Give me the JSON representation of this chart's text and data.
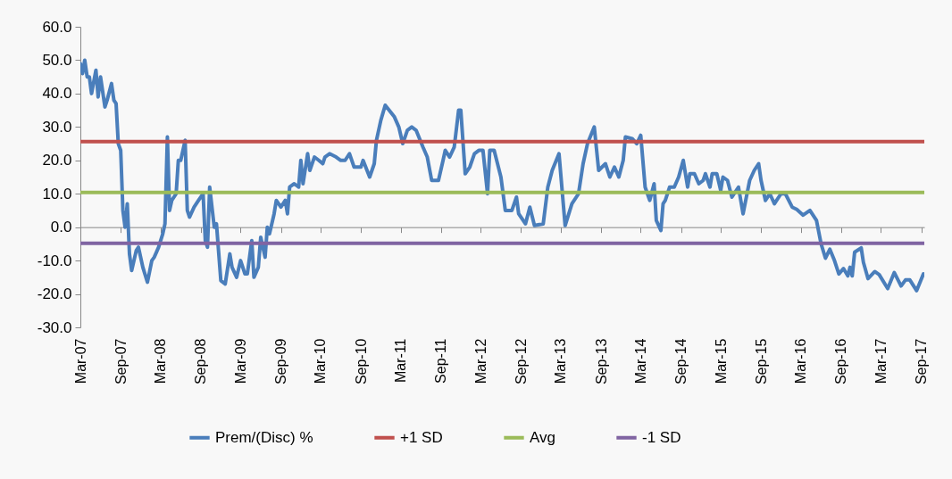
{
  "chart_data": {
    "type": "line",
    "x": [
      "2007-03-01",
      "2007-03-11",
      "2007-03-21",
      "2007-04-01",
      "2007-04-11",
      "2007-04-21",
      "2007-05-11",
      "2007-05-21",
      "2007-06-01",
      "2007-06-21",
      "2007-07-01",
      "2007-07-21",
      "2007-08-01",
      "2007-08-11",
      "2007-08-21",
      "2007-09-01",
      "2007-09-11",
      "2007-09-21",
      "2007-10-01",
      "2007-10-11",
      "2007-10-21",
      "2007-11-11",
      "2007-11-21",
      "2007-12-11",
      "2008-01-01",
      "2008-01-21",
      "2008-02-01",
      "2008-02-21",
      "2008-03-11",
      "2008-03-21",
      "2008-04-01",
      "2008-04-11",
      "2008-04-21",
      "2008-05-11",
      "2008-05-21",
      "2008-06-01",
      "2008-06-21",
      "2008-07-01",
      "2008-07-11",
      "2008-08-01",
      "2008-08-21",
      "2008-09-11",
      "2008-09-21",
      "2008-10-01",
      "2008-10-11",
      "2008-11-01",
      "2008-11-11",
      "2008-12-01",
      "2008-12-21",
      "2009-01-11",
      "2009-01-21",
      "2009-02-11",
      "2009-03-01",
      "2009-03-21",
      "2009-04-01",
      "2009-04-21",
      "2009-05-01",
      "2009-05-21",
      "2009-06-01",
      "2009-06-21",
      "2009-07-01",
      "2009-07-11",
      "2009-08-01",
      "2009-08-11",
      "2009-09-01",
      "2009-09-21",
      "2009-10-01",
      "2009-10-11",
      "2009-11-01",
      "2009-11-21",
      "2009-12-01",
      "2009-12-11",
      "2010-01-01",
      "2010-01-11",
      "2010-02-01",
      "2010-02-21",
      "2010-03-11",
      "2010-03-21",
      "2010-04-11",
      "2010-05-11",
      "2010-06-01",
      "2010-06-21",
      "2010-07-11",
      "2010-08-01",
      "2010-09-01",
      "2010-09-11",
      "2010-10-11",
      "2010-11-01",
      "2010-11-11",
      "2010-12-01",
      "2010-12-21",
      "2011-02-01",
      "2011-02-21",
      "2011-03-11",
      "2011-04-01",
      "2011-04-21",
      "2011-05-11",
      "2011-06-11",
      "2011-07-01",
      "2011-07-21",
      "2011-08-21",
      "2011-09-11",
      "2011-09-21",
      "2011-10-11",
      "2011-11-01",
      "2011-11-21",
      "2011-12-01",
      "2011-12-21",
      "2012-01-11",
      "2012-02-01",
      "2012-02-21",
      "2012-03-11",
      "2012-04-01",
      "2012-04-11",
      "2012-05-01",
      "2012-06-01",
      "2012-06-21",
      "2012-07-21",
      "2012-08-11",
      "2012-08-21",
      "2012-09-21",
      "2012-10-11",
      "2012-11-01",
      "2012-12-11",
      "2013-01-01",
      "2013-01-21",
      "2013-02-21",
      "2013-03-21",
      "2013-04-21",
      "2013-05-21",
      "2013-06-11",
      "2013-07-01",
      "2013-08-01",
      "2013-08-21",
      "2013-09-21",
      "2013-10-11",
      "2013-11-01",
      "2013-11-21",
      "2013-12-11",
      "2013-12-21",
      "2014-01-21",
      "2014-02-11",
      "2014-03-01",
      "2014-03-21",
      "2014-04-11",
      "2014-05-01",
      "2014-05-11",
      "2014-06-01",
      "2014-06-11",
      "2014-06-21",
      "2014-07-11",
      "2014-08-01",
      "2014-08-21",
      "2014-09-11",
      "2014-10-01",
      "2014-10-11",
      "2014-11-01",
      "2014-11-21",
      "2014-12-11",
      "2014-12-21",
      "2015-01-11",
      "2015-01-21",
      "2015-02-11",
      "2015-03-01",
      "2015-03-11",
      "2015-04-01",
      "2015-04-21",
      "2015-05-21",
      "2015-06-11",
      "2015-07-11",
      "2015-08-01",
      "2015-08-21",
      "2015-09-01",
      "2015-09-21",
      "2015-10-11",
      "2015-11-01",
      "2015-11-11",
      "2015-12-01",
      "2015-12-21",
      "2016-01-21",
      "2016-02-11",
      "2016-03-11",
      "2016-04-11",
      "2016-05-11",
      "2016-06-01",
      "2016-06-21",
      "2016-07-11",
      "2016-08-01",
      "2016-08-21",
      "2016-09-11",
      "2016-10-01",
      "2016-10-11",
      "2016-10-21",
      "2016-11-01",
      "2016-12-01",
      "2016-12-11",
      "2017-01-01",
      "2017-02-01",
      "2017-02-21",
      "2017-04-01",
      "2017-05-01",
      "2017-06-01",
      "2017-06-21",
      "2017-07-11",
      "2017-08-11",
      "2017-09-11"
    ],
    "series": [
      {
        "name": "Prem/(Disc) %",
        "color": "#4a7ebb",
        "values": [
          49,
          46,
          50,
          45,
          45,
          40,
          47,
          39,
          45,
          36,
          38,
          43,
          38,
          37,
          25,
          23,
          5,
          0,
          7,
          -8,
          -13,
          -7,
          -6,
          -12,
          -16.5,
          -10,
          -9,
          -6,
          -2,
          1,
          27,
          5,
          8,
          10,
          20,
          20,
          26,
          5,
          3,
          6,
          8,
          10,
          -4,
          -6,
          12,
          0,
          1,
          -16,
          -17,
          -8,
          -12,
          -15,
          -10,
          -14,
          -14,
          -4,
          -15,
          -12,
          -3,
          -9,
          0,
          -2,
          4,
          8,
          6,
          8,
          4,
          12,
          13,
          12,
          20,
          13,
          22,
          17,
          21,
          20,
          19,
          21,
          22,
          21,
          20,
          20,
          22,
          18,
          18,
          20,
          15,
          19,
          26,
          32,
          36.5,
          33,
          30,
          25,
          29,
          30,
          29,
          24,
          21,
          14,
          14,
          20,
          23,
          21,
          24,
          35,
          35,
          16,
          18,
          22,
          23,
          23,
          10,
          23,
          23,
          15,
          5,
          5,
          9,
          4,
          1,
          6,
          0.5,
          1,
          12,
          17,
          22,
          0.5,
          7,
          10,
          19,
          25,
          30,
          17,
          19,
          15,
          18,
          15,
          20,
          27,
          26.5,
          25,
          27.5,
          12,
          8,
          13,
          2,
          -1,
          7,
          8,
          12,
          12,
          15,
          20,
          12,
          16,
          16,
          13,
          14,
          16,
          12,
          16,
          16,
          11,
          15,
          14,
          9,
          12,
          4,
          14,
          17,
          19,
          14,
          8,
          10,
          7,
          8,
          10,
          10,
          6,
          5.3,
          3.6,
          5,
          2,
          -5,
          -9.3,
          -6.6,
          -10,
          -14,
          -12.4,
          -14.6,
          -12,
          -14.6,
          -7.5,
          -6.2,
          -10.5,
          -15.4,
          -13.3,
          -14.2,
          -18.4,
          -13.6,
          -17.6,
          -15.8,
          -15.8,
          -19,
          -14
        ]
      }
    ],
    "ref_lines": [
      {
        "axis": "y",
        "value": 25.6,
        "label": "+1 SD",
        "color": "#c0504d"
      },
      {
        "axis": "y",
        "value": 10.4,
        "label": "Avg",
        "color": "#9bbb59"
      },
      {
        "axis": "y",
        "value": -4.8,
        "label": "-1 SD",
        "color": "#8064a2"
      }
    ],
    "xlim": [
      "2007-03-01",
      "2017-09-15"
    ],
    "xticks": [
      {
        "value": "2007-03-01",
        "label": "Mar-07"
      },
      {
        "value": "2007-09-01",
        "label": "Sep-07"
      },
      {
        "value": "2008-03-01",
        "label": "Mar-08"
      },
      {
        "value": "2008-09-01",
        "label": "Sep-08"
      },
      {
        "value": "2009-03-01",
        "label": "Mar-09"
      },
      {
        "value": "2009-09-01",
        "label": "Sep-09"
      },
      {
        "value": "2010-03-01",
        "label": "Mar-10"
      },
      {
        "value": "2010-09-01",
        "label": "Sep-10"
      },
      {
        "value": "2011-03-01",
        "label": "Mar-11"
      },
      {
        "value": "2011-09-01",
        "label": "Sep-11"
      },
      {
        "value": "2012-03-01",
        "label": "Mar-12"
      },
      {
        "value": "2012-09-01",
        "label": "Sep-12"
      },
      {
        "value": "2013-03-01",
        "label": "Mar-13"
      },
      {
        "value": "2013-09-01",
        "label": "Sep-13"
      },
      {
        "value": "2014-03-01",
        "label": "Mar-14"
      },
      {
        "value": "2014-09-01",
        "label": "Sep-14"
      },
      {
        "value": "2015-03-01",
        "label": "Mar-15"
      },
      {
        "value": "2015-09-01",
        "label": "Sep-15"
      },
      {
        "value": "2016-03-01",
        "label": "Mar-16"
      },
      {
        "value": "2016-09-01",
        "label": "Sep-16"
      },
      {
        "value": "2017-03-01",
        "label": "Mar-17"
      },
      {
        "value": "2017-09-01",
        "label": "Sep-17"
      }
    ],
    "ylim": [
      -30,
      60
    ],
    "yticks": [
      {
        "value": -30,
        "label": "-30.0"
      },
      {
        "value": -20,
        "label": "-20.0"
      },
      {
        "value": -10,
        "label": "-10.0"
      },
      {
        "value": 0,
        "label": "0.0"
      },
      {
        "value": 10,
        "label": "10.0"
      },
      {
        "value": 20,
        "label": "20.0"
      },
      {
        "value": 30,
        "label": "30.0"
      },
      {
        "value": 40,
        "label": "40.0"
      },
      {
        "value": 50,
        "label": "50.0"
      },
      {
        "value": 60,
        "label": "60.0"
      }
    ],
    "legend": "bottom"
  }
}
